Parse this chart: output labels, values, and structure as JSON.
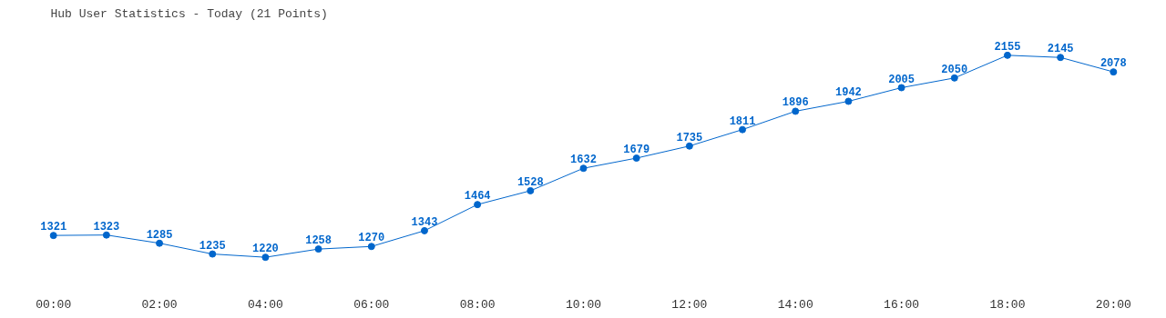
{
  "chart_data": {
    "type": "line",
    "title": "Hub User Statistics - Today (21 Points)",
    "x": [
      0,
      1,
      2,
      3,
      4,
      5,
      6,
      7,
      8,
      9,
      10,
      11,
      12,
      13,
      14,
      15,
      16,
      17,
      18,
      19,
      20
    ],
    "series": [
      {
        "color": "#0066cc",
        "values": [
          1321,
          1323,
          1285,
          1235,
          1220,
          1258,
          1270,
          1343,
          1464,
          1528,
          1632,
          1679,
          1735,
          1811,
          1896,
          1942,
          2005,
          2050,
          2155,
          2145,
          2078
        ]
      }
    ],
    "xlim": [
      0,
      20
    ],
    "data_labels": true,
    "marker": "circle",
    "line_style": "solid",
    "grid": false,
    "tick_labels": "x",
    "xticks": [
      {
        "value": 0,
        "label": "00:00"
      },
      {
        "value": 2,
        "label": "02:00"
      },
      {
        "value": 4,
        "label": "04:00"
      },
      {
        "value": 6,
        "label": "06:00"
      },
      {
        "value": 8,
        "label": "08:00"
      },
      {
        "value": 10,
        "label": "10:00"
      },
      {
        "value": 12,
        "label": "12:00"
      },
      {
        "value": 14,
        "label": "14:00"
      },
      {
        "value": 16,
        "label": "16:00"
      },
      {
        "value": 18,
        "label": "18:00"
      },
      {
        "value": 20,
        "label": "20:00"
      }
    ]
  }
}
